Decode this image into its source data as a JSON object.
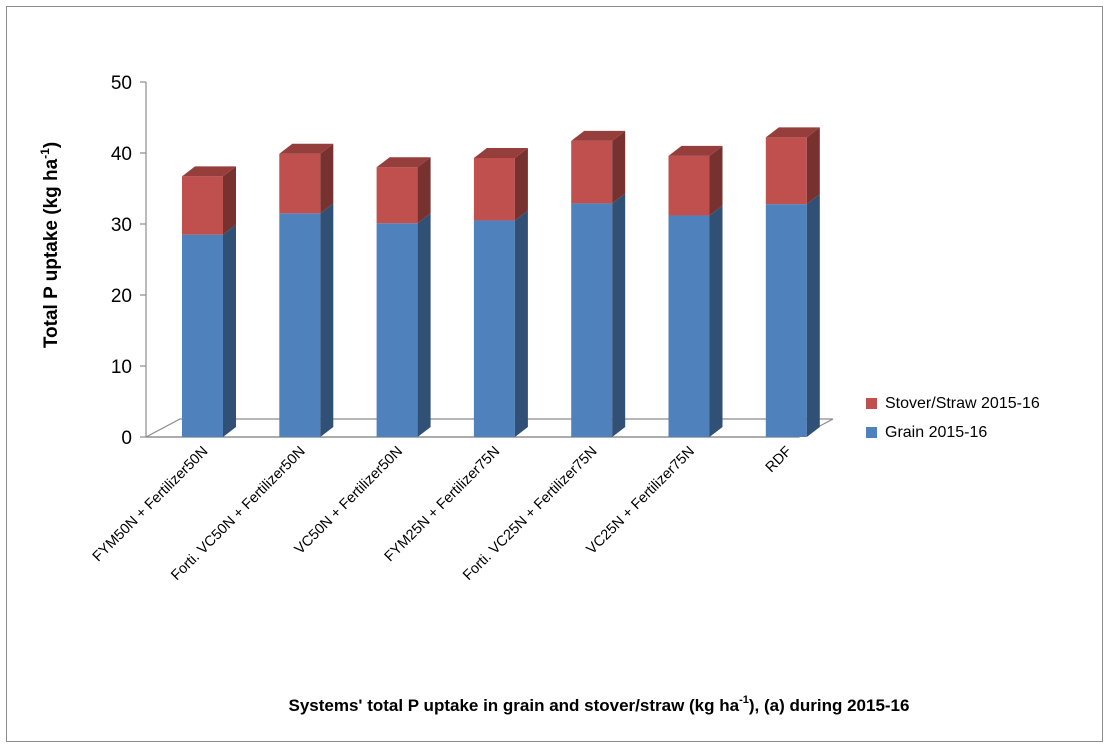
{
  "chart_data": {
    "type": "bar",
    "stacked": true,
    "three_d": true,
    "categories": [
      "FYM50N + Fertilizer50N",
      "Forti. VC50N + Fertilizer50N",
      "VC50N + Fertilizer50N",
      "FYM25N + Fertilizer75N",
      "Forti. VC25N + Fertilizer75N",
      "VC25N + Fertilizer75N",
      "RDF"
    ],
    "series": [
      {
        "name": "Grain 2015-16",
        "color": "#4F81BD",
        "values": [
          28.5,
          31.5,
          30.1,
          30.5,
          32.9,
          31.2,
          32.8
        ]
      },
      {
        "name": "Stover/Straw 2015-16",
        "color": "#C0504D",
        "values": [
          8.2,
          8.4,
          7.9,
          8.8,
          8.8,
          8.4,
          9.4
        ]
      }
    ],
    "ylabel_main": "Total P uptake (kg ha",
    "ylabel_sup": "-1",
    "ylabel_end": ")",
    "xlabel_part1": "Systems' total P uptake in grain and stover/straw (kg ha",
    "xlabel_sup": "-1",
    "xlabel_part2": "),  (a) during 2015-16",
    "yticks": [
      0,
      10,
      20,
      30,
      40,
      50
    ],
    "ylim": [
      0,
      50
    ],
    "grid": false,
    "legend_position": "right"
  }
}
